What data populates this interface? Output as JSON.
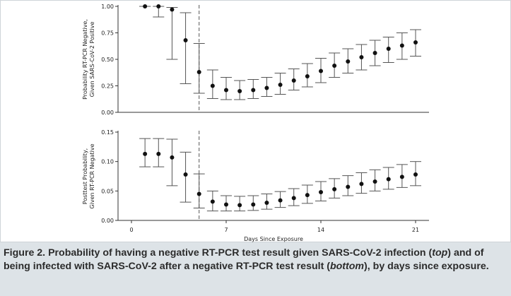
{
  "chart_data": [
    {
      "type": "scatter",
      "panel": "top",
      "ylabel_lines": [
        "Probability RT-PCR Negative,",
        "Given SARS-CoV-2 Positive"
      ],
      "xlabel": "",
      "xlim": [
        -1,
        22
      ],
      "ylim": [
        0,
        1.0
      ],
      "yticks": [
        0,
        0.25,
        0.5,
        0.75,
        1.0
      ],
      "ytick_labels": [
        "0.00",
        "0.25",
        "0.50",
        "0.75",
        "1.00"
      ],
      "reference_line_x": 5,
      "error_bars": true,
      "x": [
        1,
        2,
        3,
        4,
        5,
        6,
        7,
        8,
        9,
        10,
        11,
        12,
        13,
        14,
        15,
        16,
        17,
        18,
        19,
        20,
        21
      ],
      "y": [
        1.0,
        1.0,
        0.97,
        0.68,
        0.38,
        0.25,
        0.21,
        0.2,
        0.21,
        0.23,
        0.26,
        0.3,
        0.34,
        0.39,
        0.44,
        0.48,
        0.52,
        0.56,
        0.6,
        0.63,
        0.66
      ],
      "lower": [
        1.0,
        0.9,
        0.5,
        0.27,
        0.18,
        0.13,
        0.12,
        0.12,
        0.13,
        0.15,
        0.17,
        0.21,
        0.24,
        0.28,
        0.33,
        0.37,
        0.4,
        0.44,
        0.47,
        0.5,
        0.53
      ],
      "upper": [
        1.0,
        1.0,
        0.99,
        0.94,
        0.65,
        0.4,
        0.33,
        0.3,
        0.31,
        0.33,
        0.37,
        0.41,
        0.46,
        0.51,
        0.56,
        0.6,
        0.64,
        0.68,
        0.71,
        0.75,
        0.78
      ]
    },
    {
      "type": "scatter",
      "panel": "bottom",
      "ylabel_lines": [
        "Posttest Probability,",
        "Given RT-PCR Negative"
      ],
      "xlabel": "Days Since Exposure",
      "xlim": [
        -1,
        22
      ],
      "ylim": [
        0,
        0.15
      ],
      "yticks": [
        0,
        0.05,
        0.1,
        0.15
      ],
      "ytick_labels": [
        "0.00",
        "0.05",
        "0.10",
        "0.15"
      ],
      "xticks": [
        0,
        7,
        14,
        21
      ],
      "xtick_labels": [
        "0",
        "7",
        "14",
        "21"
      ],
      "reference_line_x": 5,
      "error_bars": true,
      "x": [
        1,
        2,
        3,
        4,
        5,
        6,
        7,
        8,
        9,
        10,
        11,
        12,
        13,
        14,
        15,
        16,
        17,
        18,
        19,
        20,
        21
      ],
      "y": [
        0.113,
        0.113,
        0.107,
        0.078,
        0.045,
        0.032,
        0.027,
        0.026,
        0.027,
        0.03,
        0.034,
        0.038,
        0.043,
        0.048,
        0.053,
        0.057,
        0.062,
        0.066,
        0.07,
        0.074,
        0.078
      ],
      "lower": [
        0.091,
        0.091,
        0.059,
        0.031,
        0.021,
        0.016,
        0.016,
        0.016,
        0.017,
        0.019,
        0.022,
        0.025,
        0.029,
        0.033,
        0.038,
        0.042,
        0.046,
        0.05,
        0.053,
        0.056,
        0.059
      ],
      "upper": [
        0.139,
        0.139,
        0.138,
        0.116,
        0.079,
        0.05,
        0.042,
        0.041,
        0.042,
        0.045,
        0.049,
        0.054,
        0.06,
        0.066,
        0.071,
        0.076,
        0.081,
        0.086,
        0.09,
        0.095,
        0.1
      ]
    }
  ],
  "caption": {
    "part1": "Figure 2. Probability of having a negative RT-PCR test result given SARS-CoV-2 infection (",
    "em1": "top",
    "part2": ") and of being infected with SARS-CoV-2 after a negative RT-PCR test result (",
    "em2": "bottom",
    "part3": "), by days since exposure."
  },
  "colors": {
    "marker": "#111111",
    "error_bar": "#555555",
    "axis": "#333333",
    "reference_line": "#555555",
    "caption_background": "#dde3e7",
    "caption_text": "#2b2b2b"
  }
}
